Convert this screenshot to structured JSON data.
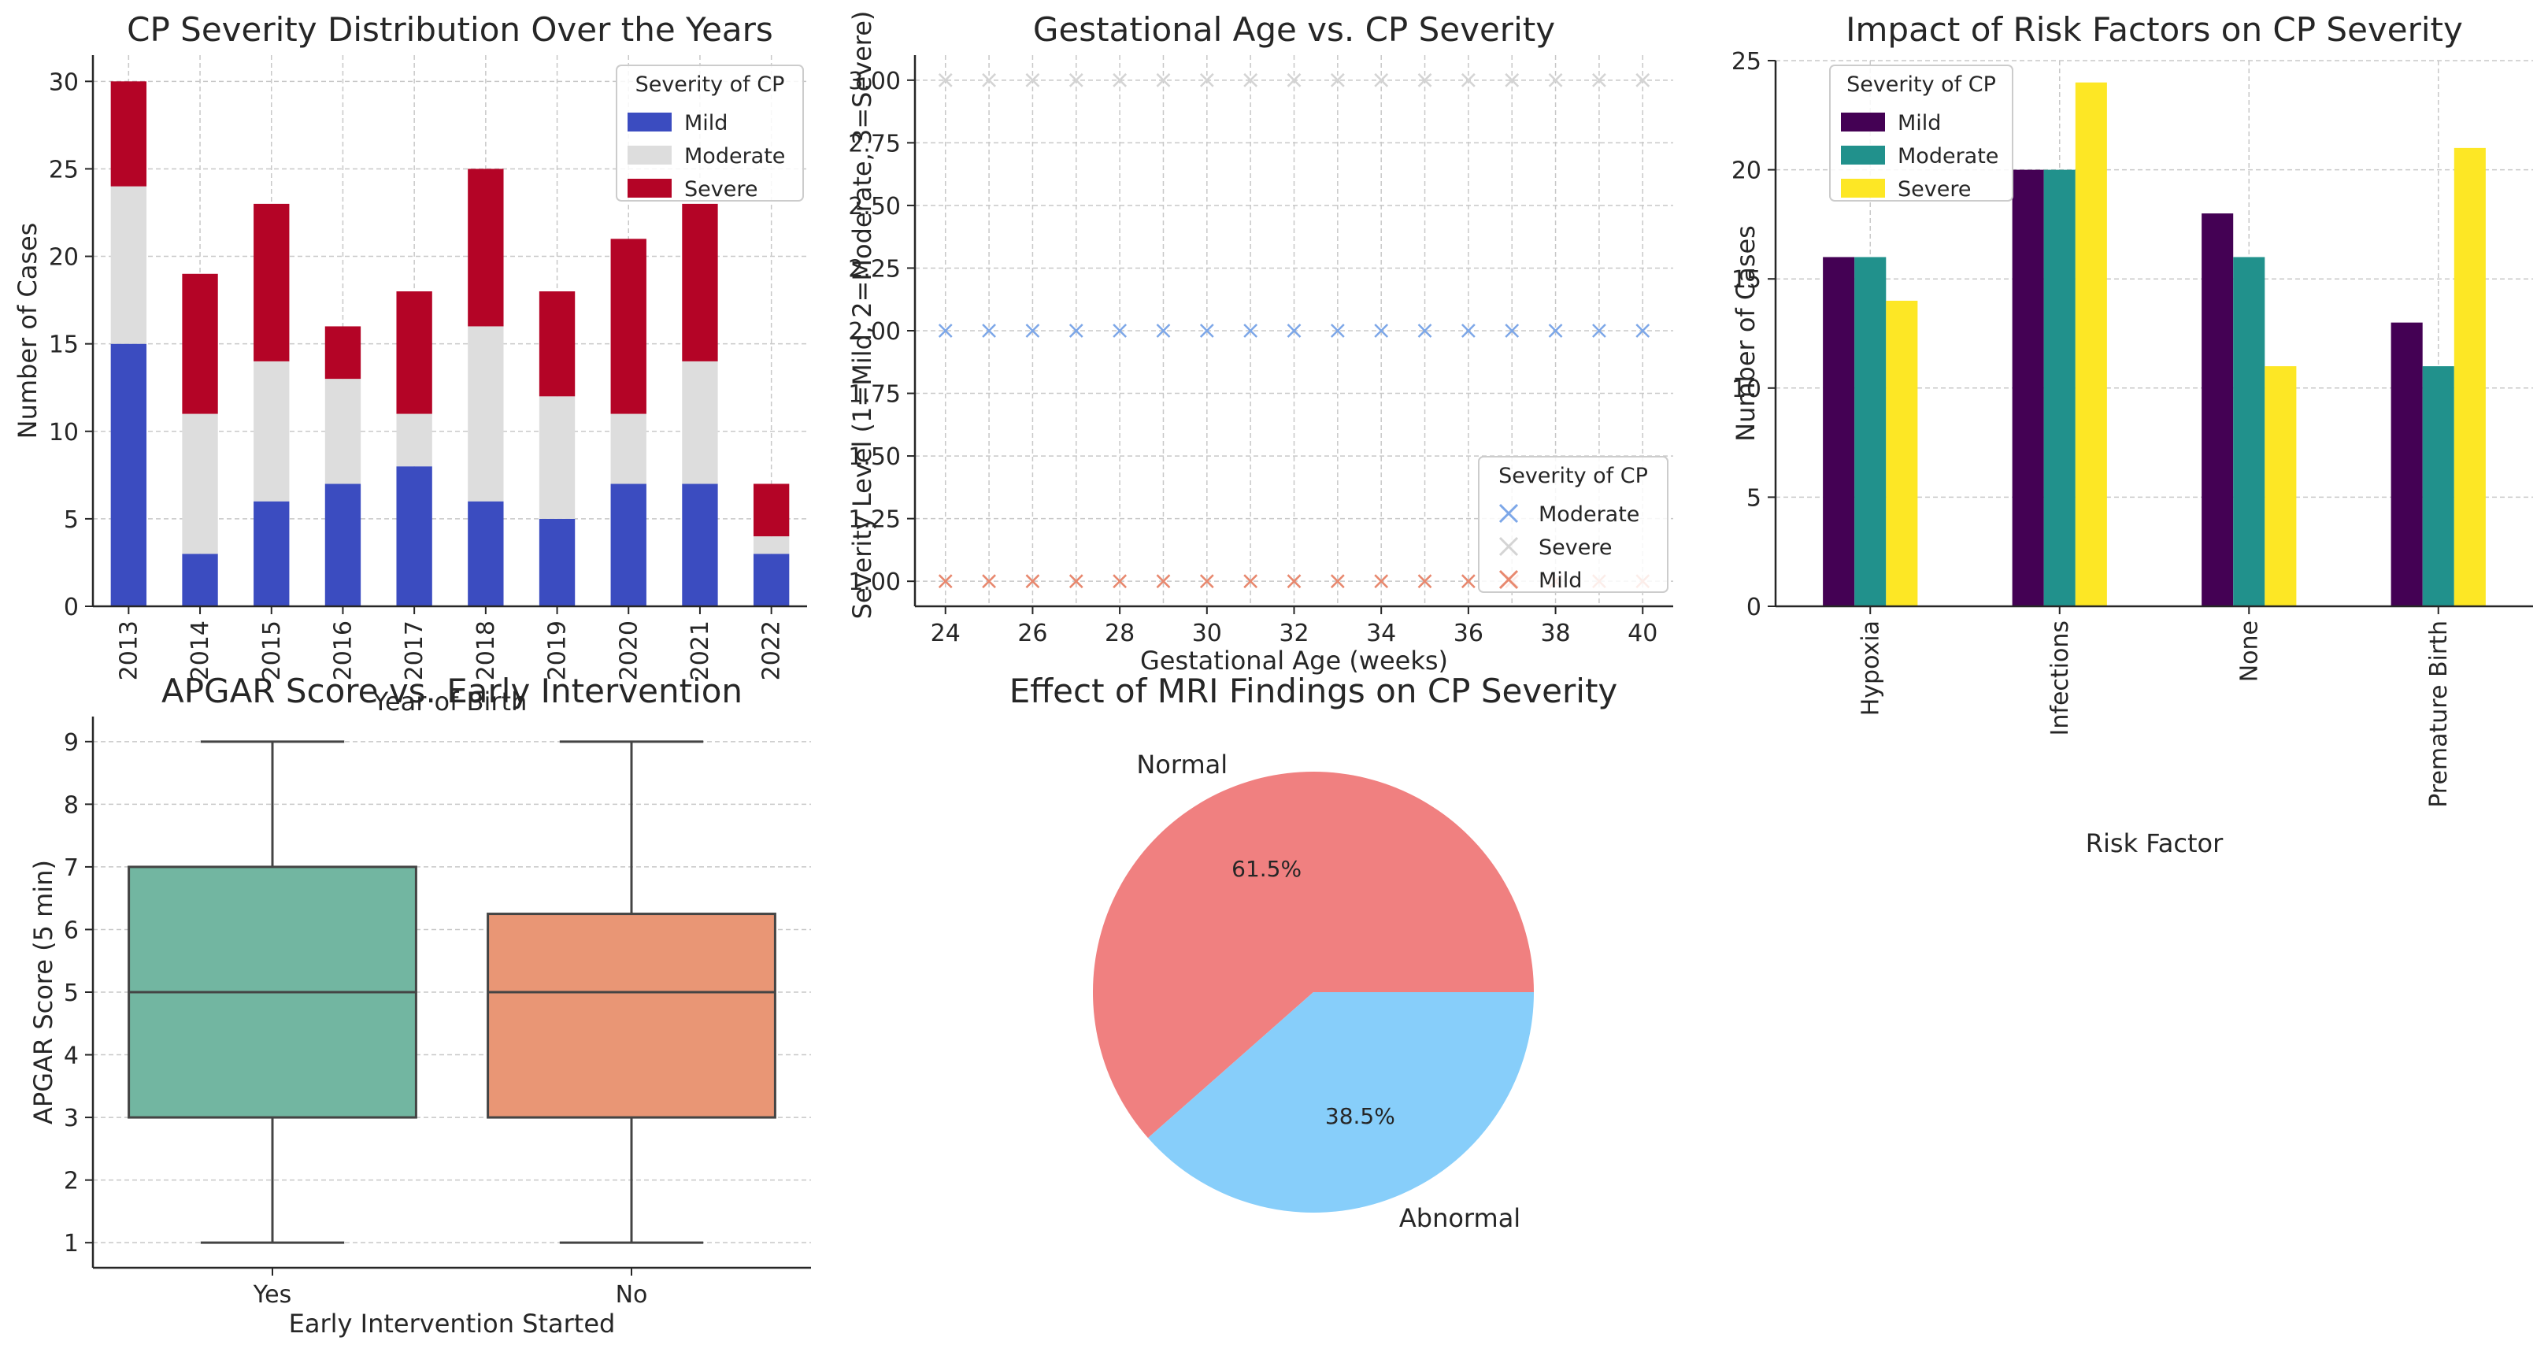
{
  "chart_data": [
    {
      "id": "stacked",
      "type": "bar",
      "stacked": true,
      "title": "CP Severity Distribution Over the Years",
      "xlabel": "Year of Birth",
      "ylabel": "Number of Cases",
      "ylim": [
        0,
        31.5
      ],
      "yticks": [
        "0",
        "5",
        "10",
        "15",
        "20",
        "25",
        "30"
      ],
      "categories": [
        "2013",
        "2014",
        "2015",
        "2016",
        "2017",
        "2018",
        "2019",
        "2020",
        "2021",
        "2022"
      ],
      "series": [
        {
          "name": "Mild",
          "color": "#3b4cc0",
          "values": [
            15,
            3,
            6,
            7,
            8,
            6,
            5,
            7,
            7,
            3
          ]
        },
        {
          "name": "Moderate",
          "color": "#dddddd",
          "values": [
            9,
            8,
            8,
            6,
            3,
            10,
            7,
            4,
            7,
            1
          ]
        },
        {
          "name": "Severe",
          "color": "#b40426",
          "values": [
            6,
            8,
            9,
            3,
            7,
            9,
            6,
            10,
            9,
            3
          ]
        }
      ],
      "legend": {
        "title": "Severity of CP",
        "placement": "top-right"
      },
      "grid": true
    },
    {
      "id": "scatter",
      "type": "scatter",
      "title": "Gestational Age vs. CP Severity",
      "xlabel": "Gestational Age (weeks)",
      "ylabel": "Severity Level (1=Mild, 2=Moderate, 3=Severe)",
      "xlim": [
        23.3,
        40.7
      ],
      "ylim": [
        0.9,
        3.1
      ],
      "xticks": [
        "24",
        "26",
        "28",
        "30",
        "32",
        "34",
        "36",
        "38",
        "40"
      ],
      "yticks": [
        "1.00",
        "1.25",
        "1.50",
        "1.75",
        "2.00",
        "2.25",
        "2.50",
        "2.75",
        "3.00"
      ],
      "x": [
        24,
        25,
        26,
        27,
        28,
        29,
        30,
        31,
        32,
        33,
        34,
        35,
        36,
        37,
        38,
        39,
        40
      ],
      "series": [
        {
          "name": "Moderate",
          "color": "#7da7e8",
          "y": 2
        },
        {
          "name": "Severe",
          "color": "#d4d4d4",
          "y": 3
        },
        {
          "name": "Mild",
          "color": "#e8886e",
          "y": 1
        }
      ],
      "legend": {
        "title": "Severity of CP",
        "placement": "bottom-right"
      },
      "grid": true
    },
    {
      "id": "grouped",
      "type": "bar",
      "grouped": true,
      "title": "Impact of Risk Factors on CP Severity",
      "xlabel": "Risk Factor",
      "ylabel": "Number of Cases",
      "ylim": [
        0,
        25
      ],
      "yticks": [
        "0",
        "5",
        "10",
        "15",
        "20",
        "25"
      ],
      "categories": [
        "Hypoxia",
        "Infections",
        "None",
        "Premature Birth"
      ],
      "series": [
        {
          "name": "Mild",
          "color": "#440154",
          "values": [
            16,
            20,
            18,
            13
          ]
        },
        {
          "name": "Moderate",
          "color": "#21918c",
          "values": [
            16,
            20,
            16,
            11
          ]
        },
        {
          "name": "Severe",
          "color": "#fde725",
          "values": [
            14,
            24,
            11,
            21
          ]
        }
      ],
      "legend": {
        "title": "Severity of CP",
        "placement": "top-left"
      },
      "grid": true
    },
    {
      "id": "box",
      "type": "box",
      "title": "APGAR Score vs. Early Intervention",
      "xlabel": "Early Intervention Started",
      "ylabel": "APGAR Score (5 min)",
      "ylim": [
        0.6,
        9.4
      ],
      "yticks": [
        "1",
        "2",
        "3",
        "4",
        "5",
        "6",
        "7",
        "8",
        "9"
      ],
      "categories": [
        "Yes",
        "No"
      ],
      "boxes": [
        {
          "color": "#72b6a1",
          "min": 1,
          "q1": 3,
          "median": 5,
          "q3": 7,
          "max": 9
        },
        {
          "color": "#e99675",
          "min": 1,
          "q1": 3,
          "median": 5,
          "q3": 6.25,
          "max": 9
        }
      ],
      "grid": true
    },
    {
      "id": "pie",
      "type": "pie",
      "title": "Effect of MRI Findings on CP Severity",
      "slices": [
        {
          "label": "Normal",
          "value": 61.5,
          "pct": "61.5%",
          "color": "#f08080"
        },
        {
          "label": "Abnormal",
          "value": 38.5,
          "pct": "38.5%",
          "color": "#87cefa"
        }
      ]
    }
  ]
}
